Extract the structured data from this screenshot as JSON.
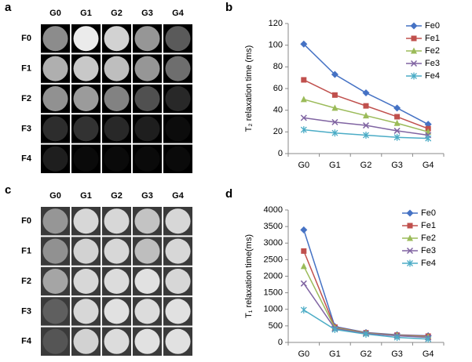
{
  "image_panels": [
    {
      "panel_label": "a",
      "columns": [
        "G0",
        "G1",
        "G2",
        "G3",
        "G4"
      ],
      "rows": [
        "F0",
        "F1",
        "F2",
        "F3",
        "F4"
      ]
    },
    {
      "panel_label": "c",
      "columns": [
        "G0",
        "G1",
        "G2",
        "G3",
        "G4"
      ],
      "rows": [
        "F0",
        "F1",
        "F2",
        "F3",
        "F4"
      ]
    }
  ],
  "chart_data": [
    {
      "type": "line",
      "panel_label": "b",
      "y_label": "T₂ relaxation time (ms)",
      "categories": [
        "G0",
        "G1",
        "G2",
        "G3",
        "G4"
      ],
      "ylim": [
        0,
        120
      ],
      "yticks": [
        0,
        20,
        40,
        60,
        80,
        100,
        120
      ],
      "series": [
        {
          "name": "Fe0",
          "color": "#4572c4",
          "marker": "diamond",
          "values": [
            101,
            73,
            56,
            42,
            27
          ]
        },
        {
          "name": "Fe1",
          "color": "#c0504d",
          "marker": "square",
          "values": [
            68,
            54,
            44,
            34,
            23
          ]
        },
        {
          "name": "Fe2",
          "color": "#9bbb59",
          "marker": "triangle",
          "values": [
            50,
            42,
            35,
            28,
            20
          ]
        },
        {
          "name": "Fe3",
          "color": "#8064a2",
          "marker": "x",
          "values": [
            33,
            29,
            26,
            21,
            17
          ]
        },
        {
          "name": "Fe4",
          "color": "#4bacc6",
          "marker": "star",
          "values": [
            22,
            19,
            17,
            15,
            14
          ]
        }
      ]
    },
    {
      "type": "line",
      "panel_label": "d",
      "y_label": "T₁ relaxation time(ms)",
      "categories": [
        "G0",
        "G1",
        "G2",
        "G3",
        "G4"
      ],
      "ylim": [
        0,
        4000
      ],
      "yticks": [
        0,
        500,
        1000,
        1500,
        2000,
        2500,
        3000,
        3500,
        4000
      ],
      "series": [
        {
          "name": "Fe0",
          "color": "#4572c4",
          "marker": "diamond",
          "values": [
            3400,
            480,
            300,
            230,
            200
          ]
        },
        {
          "name": "Fe1",
          "color": "#c0504d",
          "marker": "square",
          "values": [
            2760,
            460,
            290,
            220,
            190
          ]
        },
        {
          "name": "Fe2",
          "color": "#9bbb59",
          "marker": "triangle",
          "values": [
            2300,
            440,
            280,
            210,
            170
          ]
        },
        {
          "name": "Fe3",
          "color": "#8064a2",
          "marker": "x",
          "values": [
            1780,
            420,
            270,
            200,
            150
          ]
        },
        {
          "name": "Fe4",
          "color": "#4bacc6",
          "marker": "star",
          "values": [
            980,
            390,
            250,
            150,
            100
          ]
        }
      ]
    }
  ]
}
